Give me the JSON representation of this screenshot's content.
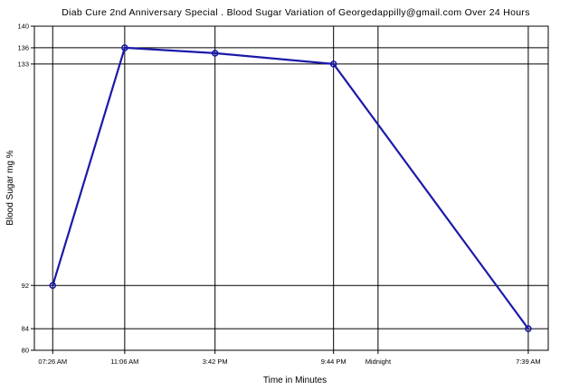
{
  "chart_data": {
    "type": "line",
    "title": "Diab Cure 2nd Anniversary Special . Blood Sugar Variation of Georgedappilly@gmail.com Over 24 Hours",
    "xlabel": "Time in Minutes",
    "ylabel": "Blood Sugar mg %",
    "x_ticks": [
      "07:26 AM",
      "11:06 AM",
      "3:42 PM",
      "9:44 PM",
      "Midnight",
      "7:39 AM"
    ],
    "x_minutes": [
      446,
      666,
      942,
      1304,
      1440,
      1899
    ],
    "y_ticks": [
      80,
      84,
      92,
      133,
      136,
      140
    ],
    "ylim": [
      80,
      140
    ],
    "xlim": [
      390,
      1960
    ],
    "grid": true,
    "series": [
      {
        "x": [
          "07:26 AM",
          "11:06 AM",
          "3:42 PM",
          "9:44 PM",
          "7:39 AM"
        ],
        "x_minutes": [
          446,
          666,
          942,
          1304,
          1899
        ],
        "values": [
          92,
          136,
          135,
          133,
          84
        ],
        "color": "#1a1aa8"
      }
    ]
  }
}
